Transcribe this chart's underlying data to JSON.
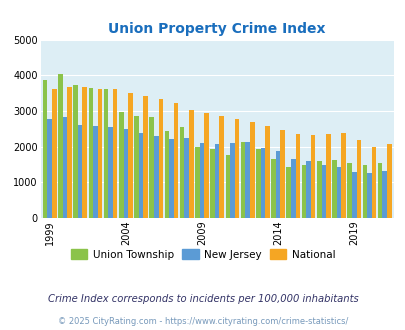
{
  "title": "Union Property Crime Index",
  "years": [
    1999,
    2000,
    2001,
    2002,
    2003,
    2004,
    2005,
    2006,
    2007,
    2008,
    2009,
    2010,
    2011,
    2012,
    2013,
    2014,
    2015,
    2016,
    2017,
    2018,
    2019,
    2020,
    2021
  ],
  "union_township": [
    3880,
    4030,
    3730,
    3650,
    3600,
    2980,
    2870,
    2840,
    2440,
    2550,
    1980,
    1920,
    1760,
    2130,
    1930,
    1650,
    1430,
    1470,
    1580,
    1620,
    1530,
    1480,
    1530
  ],
  "new_jersey": [
    2760,
    2830,
    2600,
    2580,
    2560,
    2480,
    2370,
    2290,
    2210,
    2240,
    2090,
    2080,
    2090,
    2130,
    1950,
    1870,
    1640,
    1580,
    1490,
    1420,
    1290,
    1270,
    1300
  ],
  "national": [
    3600,
    3660,
    3670,
    3610,
    3600,
    3490,
    3430,
    3320,
    3220,
    3020,
    2940,
    2870,
    2780,
    2700,
    2570,
    2470,
    2360,
    2330,
    2340,
    2390,
    2180,
    1980,
    2070
  ],
  "union_color": "#8bc34a",
  "nj_color": "#5b9bd5",
  "national_color": "#f5a623",
  "bg_color": "#ddeef5",
  "ylim": [
    0,
    5000
  ],
  "yticks": [
    0,
    1000,
    2000,
    3000,
    4000,
    5000
  ],
  "xlabel_ticks": [
    1999,
    2004,
    2009,
    2014,
    2019
  ],
  "title_color": "#1a6ebd",
  "subtitle": "Crime Index corresponds to incidents per 100,000 inhabitants",
  "footer": "© 2025 CityRating.com - https://www.cityrating.com/crime-statistics/",
  "legend_labels": [
    "Union Township",
    "New Jersey",
    "National"
  ],
  "subtitle_color": "#333366",
  "footer_color": "#7799bb"
}
